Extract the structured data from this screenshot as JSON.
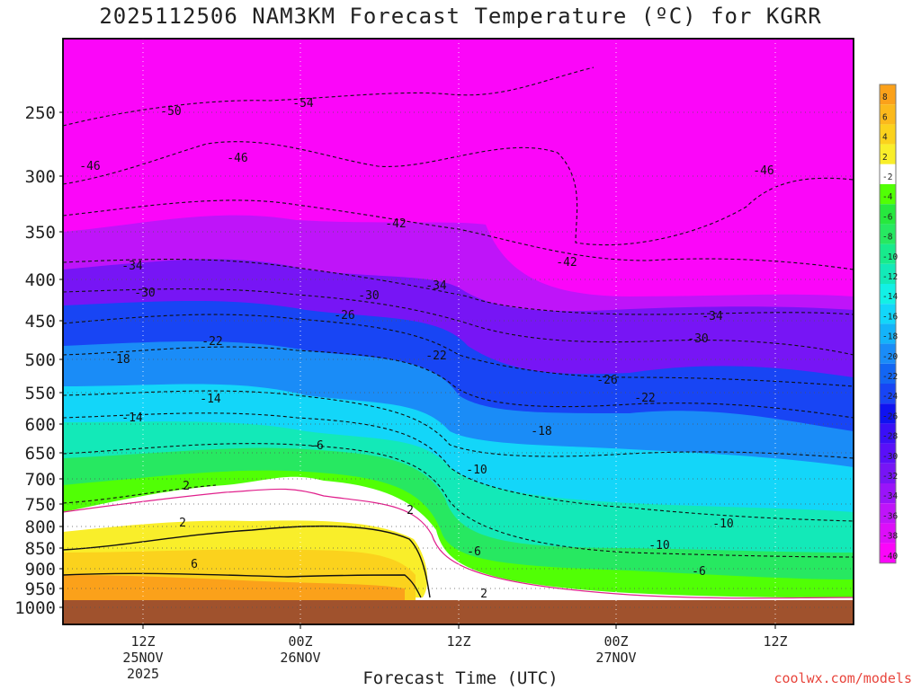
{
  "chart_data": {
    "type": "heatmap",
    "title": "2025112506 NAM3KM Forecast Temperature (ºC) for KGRR",
    "xlabel": "Forecast Time (UTC)",
    "credit": "coolwx.com/models",
    "y_axis": {
      "label": "",
      "scale": "pressure (log-like, inverted)",
      "range": [
        1000,
        200
      ],
      "ticks": [
        250,
        300,
        350,
        400,
        450,
        500,
        550,
        600,
        650,
        700,
        750,
        800,
        850,
        900,
        950,
        1000
      ]
    },
    "x_axis": {
      "ticks": [
        {
          "label": "12Z",
          "sub1": "25NOV",
          "sub2": "2025"
        },
        {
          "label": "00Z",
          "sub1": "26NOV",
          "sub2": ""
        },
        {
          "label": "12Z",
          "sub1": "",
          "sub2": ""
        },
        {
          "label": "00Z",
          "sub1": "27NOV",
          "sub2": ""
        },
        {
          "label": "12Z",
          "sub1": "",
          "sub2": ""
        }
      ]
    },
    "colorbar": {
      "levels": [
        "8",
        "6",
        "4",
        "2",
        "-2",
        "-4",
        "-6",
        "-8",
        "-10",
        "-12",
        "-14",
        "-16",
        "-18",
        "-20",
        "-22",
        "-24",
        "-26",
        "-28",
        "-30",
        "-32",
        "-34",
        "-36",
        "-38",
        "-40"
      ],
      "colors": [
        "#fba11a",
        "#fbb91c",
        "#fbd21d",
        "#f9ee2a",
        "#ffffff",
        "#51ff05",
        "#27e83e",
        "#27e861",
        "#18ea8c",
        "#13e9b8",
        "#13f0e5",
        "#13d6f9",
        "#14b3f9",
        "#1a8cf7",
        "#1366f3",
        "#1845f4",
        "#0f13f0",
        "#3a10f6",
        "#5a10f8",
        "#7715f5",
        "#9a14f9",
        "#bf14f9",
        "#dd0ef9",
        "#fb06f9"
      ]
    },
    "contour_labels": [
      "-54",
      "-50",
      "-46",
      "-46",
      "-46",
      "-42",
      "-42",
      "-34",
      "-34",
      "-34",
      "-30",
      "-30",
      "-30",
      "-26",
      "-26",
      "-22",
      "-22",
      "-22",
      "-18",
      "-18",
      "-14",
      "-14",
      "-10",
      "-10",
      "-10",
      "-6",
      "-6",
      "-6",
      "2",
      "2",
      "2",
      "6",
      "2"
    ],
    "ground_color": "#a0522d"
  }
}
